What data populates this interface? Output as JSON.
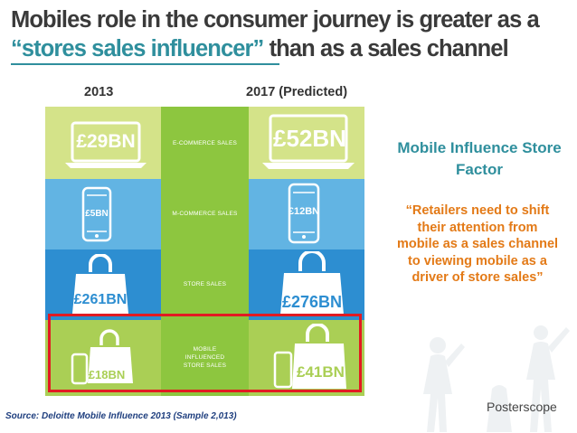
{
  "title": {
    "line1": "Mobiles role in the consumer journey is greater as a",
    "line2_highlight": "“stores sales influencer”",
    "line2_rest": " than as a sales channel"
  },
  "years": {
    "left": "2013",
    "right": "2017 (Predicted)"
  },
  "rows": [
    {
      "label": "E-COMMERCE SALES",
      "value_2013": "£29BN",
      "value_2017": "£52BN"
    },
    {
      "label": "M-COMMERCE SALES",
      "value_2013": "£5BN",
      "value_2017": "£12BN"
    },
    {
      "label": "STORE SALES",
      "value_2013": "£261BN",
      "value_2017": "£276BN"
    },
    {
      "label": "MOBILE INFLUENCED STORE SALES",
      "value_2013": "£18BN",
      "value_2017": "£41BN"
    }
  ],
  "sidebar": {
    "heading": "Mobile Influence Store Factor",
    "quote": "“Retailers need to shift their attention from mobile as a sales channel to viewing mobile as a driver of store sales”"
  },
  "source": "Source: Deloitte Mobile Influence 2013  (Sample 2,013)",
  "brand": "Posterscope",
  "colors": {
    "title": "#3a3a3a",
    "accent_teal": "#2f8f9d",
    "quote_orange": "#e37a17",
    "highlight_red": "#e21b22",
    "row1": "#c9dc6e",
    "row2": "#5aaee0",
    "row3": "#2f8ed1",
    "row4": "#aacf55",
    "mid_green": "#86c440"
  }
}
